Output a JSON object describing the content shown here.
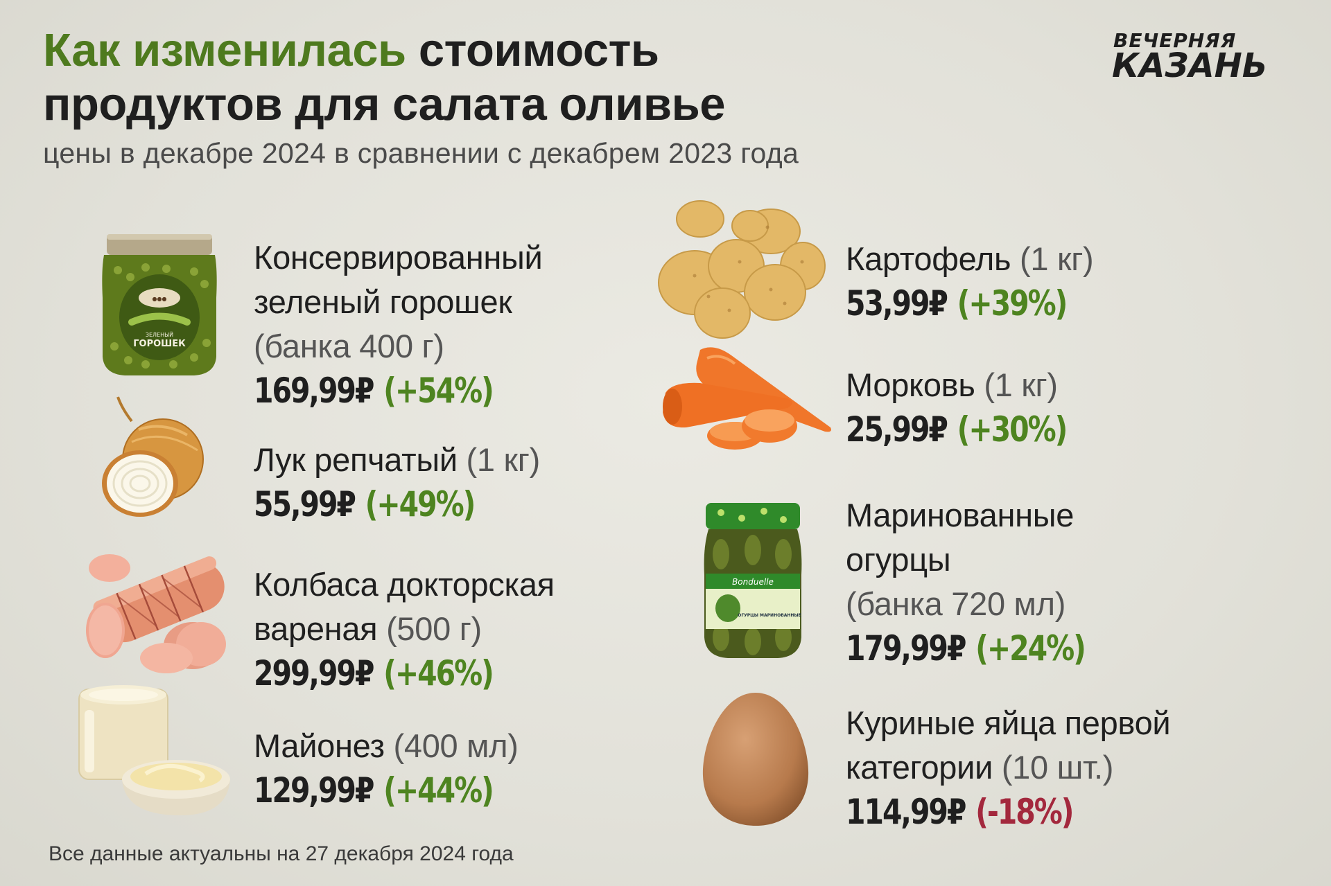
{
  "header": {
    "title_accent": "Как изменилась",
    "title_rest_1": " стоимость",
    "title_line2": "продуктов для салата оливье",
    "subtitle": "цены в декабре 2024 в сравнении с декабрем 2023 года"
  },
  "logo": {
    "line1": "ВЕЧЕРНЯЯ",
    "line2": "КАЗАНЬ"
  },
  "products": [
    {
      "name_lines": [
        "Консервированный",
        "зеленый горошек"
      ],
      "unit": "(банка 400 г)",
      "price": "169,99₽",
      "change": "(+54%)",
      "icon": "peas-jar-icon"
    },
    {
      "name_lines": [
        "Лук репчатый"
      ],
      "unit": "(1 кг)",
      "price": "55,99₽",
      "change": "(+49%)",
      "icon": "onion-icon"
    },
    {
      "name_lines": [
        "Колбаса докторская",
        "вареная"
      ],
      "unit": "(500 г)",
      "price": "299,99₽",
      "change": "(+46%)",
      "icon": "sausage-icon"
    },
    {
      "name_lines": [
        "Майонез"
      ],
      "unit": "(400 мл)",
      "price": "129,99₽",
      "change": "(+44%)",
      "icon": "mayonnaise-icon"
    },
    {
      "name_lines": [
        "Картофель"
      ],
      "unit": "(1 кг)",
      "price": "53,99₽",
      "change": "(+39%)",
      "icon": "potato-icon"
    },
    {
      "name_lines": [
        "Морковь"
      ],
      "unit": "(1 кг)",
      "price": "25,99₽",
      "change": "(+30%)",
      "icon": "carrot-icon"
    },
    {
      "name_lines": [
        "Маринованные",
        "огурцы"
      ],
      "unit": "(банка 720 мл)",
      "price": "179,99₽",
      "change": "(+24%)",
      "icon": "pickles-jar-icon"
    },
    {
      "name_lines": [
        "Куриные яйца первой",
        "категории"
      ],
      "unit": "(10 шт.)",
      "price": "114,99₽",
      "change": "(-18%)",
      "icon": "egg-icon"
    }
  ],
  "jar_labels": {
    "peas": "ГОРОШЕК",
    "peas_top": "ЗЕЛЕНЫЙ",
    "pickles": "ОГУРЦЫ МАРИНОВАННЫЕ",
    "pickles_brand": "Bonduelle"
  },
  "colors": {
    "accent_green": "#4e7a1e",
    "increase_green": "#4e8420",
    "decrease_red": "#a3283d",
    "background": "#e3e2da"
  },
  "footer": {
    "note": "Все данные актуальны на 27 декабря 2024 года"
  }
}
